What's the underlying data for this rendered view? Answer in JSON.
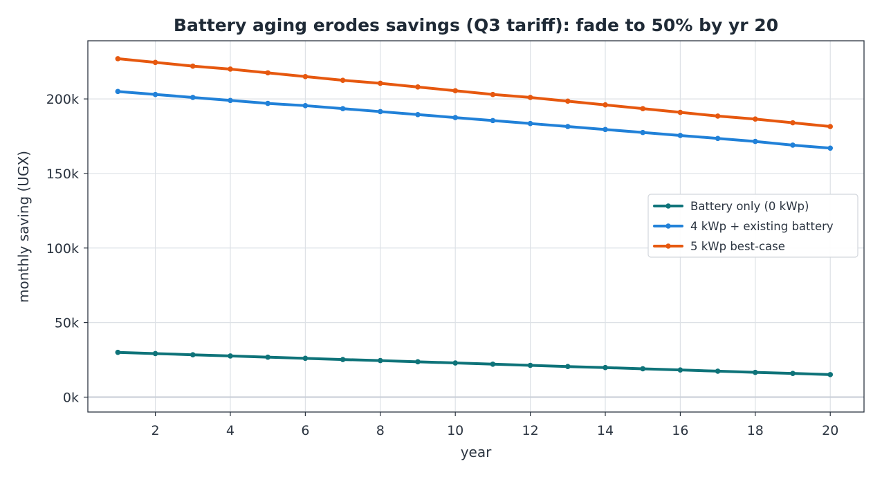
{
  "chart_data": {
    "type": "line",
    "title": "Battery aging erodes savings (Q3 tariff): fade to 50% by yr 20",
    "xlabel": "year",
    "ylabel": "monthly saving (UGX)",
    "xlim": [
      0.2,
      20.9
    ],
    "ylim": [
      -10000,
      239000
    ],
    "xticks": [
      2,
      4,
      6,
      8,
      10,
      12,
      14,
      16,
      18,
      20
    ],
    "xtick_labels": [
      "2",
      "4",
      "6",
      "8",
      "10",
      "12",
      "14",
      "16",
      "18",
      "20"
    ],
    "yticks": [
      0,
      50000,
      100000,
      150000,
      200000
    ],
    "ytick_labels": [
      "0k",
      "50k",
      "100k",
      "150k",
      "200k"
    ],
    "grid": true,
    "legend_position": "center-right",
    "x": [
      1,
      2,
      3,
      4,
      5,
      6,
      7,
      8,
      9,
      10,
      11,
      12,
      13,
      14,
      15,
      16,
      17,
      18,
      19,
      20
    ],
    "series": [
      {
        "name": "Battery only (0 kWp)",
        "color": "#0e7379",
        "values": [
          30000,
          29200,
          28400,
          27600,
          26800,
          26000,
          25200,
          24500,
          23700,
          22900,
          22100,
          21300,
          20500,
          19800,
          19000,
          18200,
          17400,
          16600,
          15900,
          15100
        ]
      },
      {
        "name": "4 kWp + existing battery",
        "color": "#2181d8",
        "values": [
          205000,
          203000,
          201000,
          199000,
          197000,
          195500,
          193500,
          191500,
          189500,
          187500,
          185500,
          183500,
          181500,
          179500,
          177500,
          175500,
          173500,
          171500,
          169000,
          167000
        ]
      },
      {
        "name": "5 kWp best-case",
        "color": "#e6580f",
        "values": [
          227000,
          224500,
          222000,
          220000,
          217500,
          215000,
          212500,
          210500,
          208000,
          205500,
          203000,
          201000,
          198500,
          196000,
          193500,
          191000,
          188500,
          186500,
          184000,
          181500
        ]
      }
    ]
  }
}
